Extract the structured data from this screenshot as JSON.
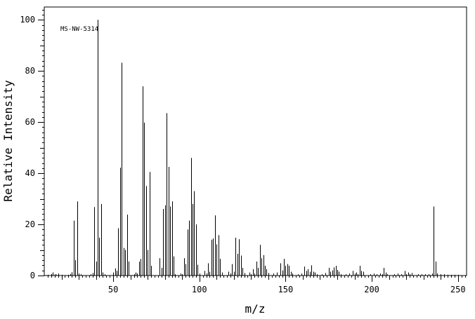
{
  "chart_data": {
    "type": "bar",
    "title": "",
    "xlabel": "m/z",
    "ylabel": "Relative Intensity",
    "annotation": "MS-NW-5314",
    "xlim": [
      10,
      255
    ],
    "ylim": [
      0,
      105
    ],
    "xticks": [
      50,
      100,
      150,
      200,
      250
    ],
    "yticks": [
      0,
      20,
      40,
      60,
      80,
      100
    ],
    "grid": false,
    "peaks": [
      [
        12,
        0.3
      ],
      [
        14,
        0.6
      ],
      [
        15,
        1.2
      ],
      [
        16,
        0.5
      ],
      [
        17,
        0.4
      ],
      [
        18,
        0.8
      ],
      [
        20,
        0.3
      ],
      [
        24,
        0.3
      ],
      [
        25,
        0.6
      ],
      [
        26,
        1.3
      ],
      [
        27,
        21.5
      ],
      [
        28,
        6.0
      ],
      [
        29,
        29.0
      ],
      [
        30,
        0.8
      ],
      [
        31,
        0.5
      ],
      [
        37,
        0.5
      ],
      [
        38,
        1.0
      ],
      [
        39,
        26.8
      ],
      [
        40,
        5.5
      ],
      [
        41,
        100
      ],
      [
        42,
        14.8
      ],
      [
        43,
        28.0
      ],
      [
        44,
        1.2
      ],
      [
        45,
        0.5
      ],
      [
        50,
        1.2
      ],
      [
        51,
        2.8
      ],
      [
        52,
        1.8
      ],
      [
        53,
        18.5
      ],
      [
        54,
        42.2
      ],
      [
        55,
        83.2
      ],
      [
        56,
        10.8
      ],
      [
        57,
        10.0
      ],
      [
        58,
        23.8
      ],
      [
        59,
        5.5
      ],
      [
        62,
        0.5
      ],
      [
        63,
        1.2
      ],
      [
        64,
        0.8
      ],
      [
        65,
        5.5
      ],
      [
        66,
        6.5
      ],
      [
        67,
        74.0
      ],
      [
        68,
        59.8
      ],
      [
        69,
        35.0
      ],
      [
        70,
        10.0
      ],
      [
        71,
        40.5
      ],
      [
        72,
        3.8
      ],
      [
        77,
        6.8
      ],
      [
        78,
        3.0
      ],
      [
        79,
        26.0
      ],
      [
        80,
        27.5
      ],
      [
        81,
        63.5
      ],
      [
        82,
        42.5
      ],
      [
        83,
        27.0
      ],
      [
        84,
        29.0
      ],
      [
        85,
        7.5
      ],
      [
        86,
        0.5
      ],
      [
        89,
        0.8
      ],
      [
        90,
        0.5
      ],
      [
        91,
        6.8
      ],
      [
        92,
        4.5
      ],
      [
        93,
        18.0
      ],
      [
        94,
        21.5
      ],
      [
        95,
        46.0
      ],
      [
        96,
        28.0
      ],
      [
        97,
        33.0
      ],
      [
        98,
        20.0
      ],
      [
        99,
        4.2
      ],
      [
        100,
        0.8
      ],
      [
        103,
        1.8
      ],
      [
        104,
        0.8
      ],
      [
        105,
        4.8
      ],
      [
        106,
        1.5
      ],
      [
        107,
        14.0
      ],
      [
        108,
        14.5
      ],
      [
        109,
        23.5
      ],
      [
        110,
        12.2
      ],
      [
        111,
        15.8
      ],
      [
        112,
        6.5
      ],
      [
        113,
        1.2
      ],
      [
        117,
        1.5
      ],
      [
        118,
        0.8
      ],
      [
        119,
        4.5
      ],
      [
        120,
        1.5
      ],
      [
        121,
        14.8
      ],
      [
        122,
        8.5
      ],
      [
        123,
        14.2
      ],
      [
        124,
        7.8
      ],
      [
        125,
        3.0
      ],
      [
        126,
        1.0
      ],
      [
        129,
        1.2
      ],
      [
        130,
        0.5
      ],
      [
        131,
        2.5
      ],
      [
        132,
        0.8
      ],
      [
        133,
        5.5
      ],
      [
        134,
        3.0
      ],
      [
        135,
        12.0
      ],
      [
        136,
        6.8
      ],
      [
        137,
        8.0
      ],
      [
        138,
        3.8
      ],
      [
        139,
        2.5
      ],
      [
        140,
        1.0
      ],
      [
        143,
        0.8
      ],
      [
        145,
        1.2
      ],
      [
        147,
        4.8
      ],
      [
        148,
        2.0
      ],
      [
        149,
        6.5
      ],
      [
        150,
        3.8
      ],
      [
        151,
        4.5
      ],
      [
        152,
        3.8
      ],
      [
        153,
        1.5
      ],
      [
        154,
        0.8
      ],
      [
        157,
        0.5
      ],
      [
        159,
        0.8
      ],
      [
        161,
        3.5
      ],
      [
        162,
        1.8
      ],
      [
        163,
        2.5
      ],
      [
        164,
        1.5
      ],
      [
        165,
        4.0
      ],
      [
        166,
        1.5
      ],
      [
        167,
        1.2
      ],
      [
        168,
        0.5
      ],
      [
        171,
        0.5
      ],
      [
        173,
        1.0
      ],
      [
        175,
        3.0
      ],
      [
        176,
        1.5
      ],
      [
        177,
        2.0
      ],
      [
        178,
        3.2
      ],
      [
        179,
        3.8
      ],
      [
        180,
        2.2
      ],
      [
        181,
        1.5
      ],
      [
        182,
        0.5
      ],
      [
        185,
        0.5
      ],
      [
        187,
        0.8
      ],
      [
        189,
        1.8
      ],
      [
        190,
        0.8
      ],
      [
        191,
        1.2
      ],
      [
        192,
        0.5
      ],
      [
        193,
        3.8
      ],
      [
        194,
        1.8
      ],
      [
        195,
        1.5
      ],
      [
        199,
        0.5
      ],
      [
        201,
        0.8
      ],
      [
        203,
        0.5
      ],
      [
        205,
        0.8
      ],
      [
        206,
        0.5
      ],
      [
        207,
        3.0
      ],
      [
        208,
        1.2
      ],
      [
        209,
        0.5
      ],
      [
        213,
        0.5
      ],
      [
        215,
        0.8
      ],
      [
        217,
        0.5
      ],
      [
        219,
        1.8
      ],
      [
        220,
        0.5
      ],
      [
        221,
        1.2
      ],
      [
        222,
        0.5
      ],
      [
        223,
        1.0
      ],
      [
        227,
        0.5
      ],
      [
        229,
        0.5
      ],
      [
        231,
        0.5
      ],
      [
        233,
        0.5
      ],
      [
        235,
        0.8
      ],
      [
        236,
        27.0
      ],
      [
        237,
        5.5
      ],
      [
        238,
        0.8
      ],
      [
        240,
        0.5
      ],
      [
        242,
        0.5
      ],
      [
        244,
        0.3
      ],
      [
        246,
        0.3
      ],
      [
        248,
        0.3
      ],
      [
        250,
        0.3
      ]
    ]
  }
}
